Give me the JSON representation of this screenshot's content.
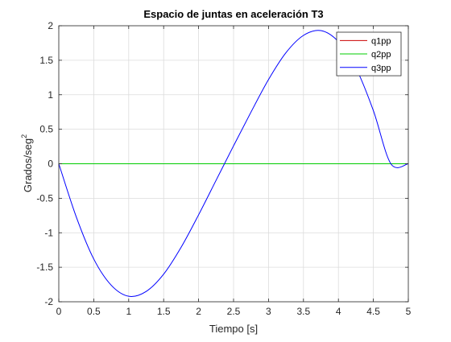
{
  "chart_data": {
    "type": "line",
    "title": "Espacio de juntas en aceleración T3",
    "xlabel": "Tiempo [s]",
    "ylabel": "Grados/seg",
    "ylabel_superscript": "2",
    "xlim": [
      0,
      5
    ],
    "ylim": [
      -2,
      2
    ],
    "xticks": [
      0,
      0.5,
      1,
      1.5,
      2,
      2.5,
      3,
      3.5,
      4,
      4.5,
      5
    ],
    "xtick_labels": [
      "0",
      "0.5",
      "1",
      "1.5",
      "2",
      "2.5",
      "3",
      "3.5",
      "4",
      "4.5",
      "5"
    ],
    "yticks": [
      -2,
      -1.5,
      -1,
      -0.5,
      0,
      0.5,
      1,
      1.5,
      2
    ],
    "ytick_labels": [
      "-2",
      "-1.5",
      "-1",
      "-0.5",
      "0",
      "0.5",
      "1",
      "1.5",
      "2"
    ],
    "grid": true,
    "legend_position": "top-right",
    "x": [
      0,
      0.25,
      0.5,
      0.75,
      1,
      1.25,
      1.5,
      1.75,
      2,
      2.25,
      2.5,
      2.75,
      3,
      3.25,
      3.5,
      3.75,
      4,
      4.25,
      4.5,
      4.75,
      5
    ],
    "series": [
      {
        "name": "q1pp",
        "color": "#cc0000",
        "values": [
          0,
          0,
          0,
          0,
          0,
          0,
          0,
          0,
          0,
          0,
          0,
          0,
          0,
          0,
          0,
          0,
          0,
          0,
          0,
          0,
          0
        ]
      },
      {
        "name": "q2pp",
        "color": "#00cc00",
        "values": [
          0,
          0,
          0,
          0,
          0,
          0,
          0,
          0,
          0,
          0,
          0,
          0,
          0,
          0,
          0,
          0,
          0,
          0,
          0,
          0,
          0
        ]
      },
      {
        "name": "q3pp",
        "color": "#0000ff",
        "values": [
          0,
          -0.77,
          -1.38,
          -1.76,
          -1.92,
          -1.85,
          -1.6,
          -1.21,
          -0.74,
          -0.24,
          0.26,
          0.75,
          1.22,
          1.61,
          1.86,
          1.93,
          1.77,
          1.39,
          0.77,
          0,
          0
        ]
      }
    ]
  }
}
